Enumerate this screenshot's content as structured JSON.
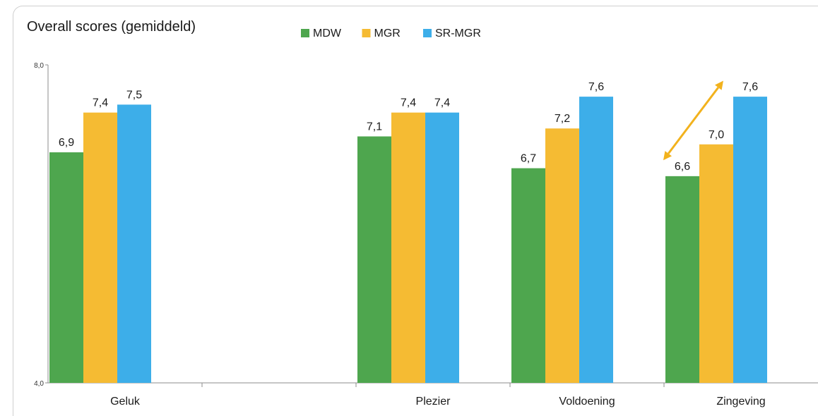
{
  "chart_data": {
    "type": "bar",
    "title": "Overall scores (gemiddeld)",
    "categories": [
      "Geluk",
      "",
      "Plezier",
      "Voldoening",
      "Zingeving"
    ],
    "series": [
      {
        "name": "MDW",
        "color": "#4ea64e",
        "values": [
          6.9,
          null,
          7.1,
          6.7,
          6.6
        ],
        "labels": [
          "6,9",
          "",
          "7,1",
          "6,7",
          "6,6"
        ]
      },
      {
        "name": "MGR",
        "color": "#f5bb33",
        "values": [
          7.4,
          null,
          7.4,
          7.2,
          7.0
        ],
        "labels": [
          "7,4",
          "",
          "7,4",
          "7,2",
          "7,0"
        ]
      },
      {
        "name": "SR-MGR",
        "color": "#3daee9",
        "values": [
          7.5,
          null,
          7.4,
          7.6,
          7.6
        ],
        "labels": [
          "7,5",
          "",
          "7,4",
          "7,6",
          "7,6"
        ]
      }
    ],
    "ylim": [
      4.0,
      8.0
    ],
    "y_ticks": [
      4.0,
      8.0
    ],
    "y_tick_labels": [
      "4,0",
      "8,0"
    ],
    "xlabel": "",
    "ylabel": "",
    "legend_position": "top-center",
    "grid": false,
    "annotation": {
      "type": "double-arrow",
      "color": "#f2b21d",
      "category": "Zingeving",
      "from_value": 6.8,
      "to_value": 7.8
    }
  }
}
